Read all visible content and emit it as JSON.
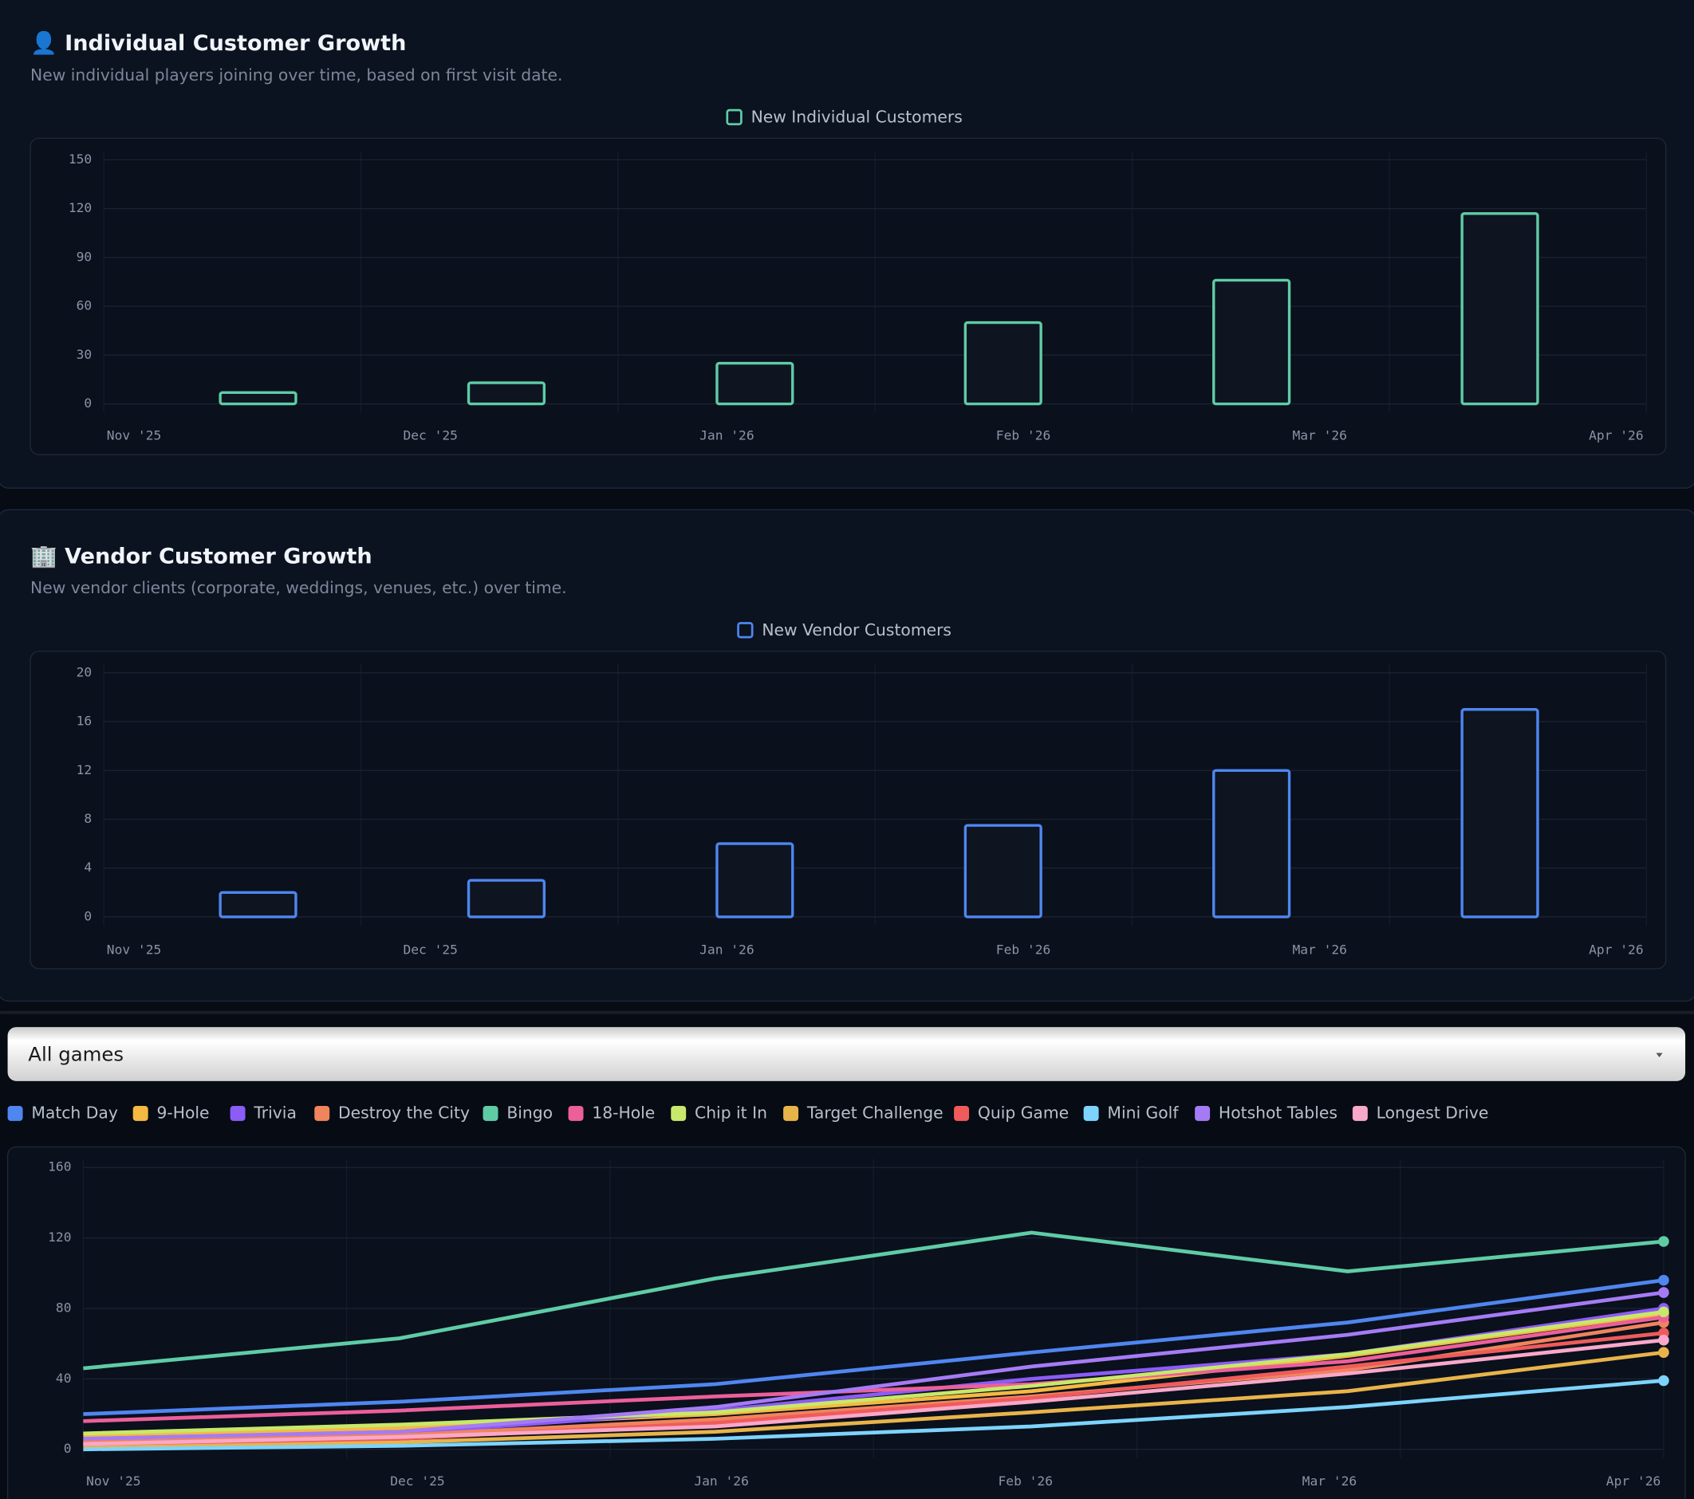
{
  "page": {
    "dropdown": "All games"
  },
  "chart_data": [
    {
      "type": "bar",
      "title": "👤 Individual Customer Growth",
      "subtitle": "New individual players joining over time, based on first visit date.",
      "legend": "New Individual Customers",
      "color": "#5fcca6",
      "categories": [
        "Nov '25",
        "Dec '25",
        "Jan '26",
        "Feb '26",
        "Mar '26",
        "Apr '26"
      ],
      "values": [
        7,
        13,
        25,
        50,
        76,
        117
      ],
      "ylim": [
        0,
        150
      ],
      "yticks": [
        0,
        30,
        60,
        90,
        120,
        150
      ],
      "grid": true
    },
    {
      "type": "bar",
      "title": "🏢 Vendor Customer Growth",
      "subtitle": "New vendor clients (corporate, weddings, venues, etc.) over time.",
      "legend": "New Vendor Customers",
      "color": "#4f86f0",
      "categories": [
        "Nov '25",
        "Dec '25",
        "Jan '26",
        "Feb '26",
        "Mar '26",
        "Apr '26"
      ],
      "values": [
        2,
        3,
        6,
        7.5,
        12,
        17
      ],
      "ylim": [
        0,
        20
      ],
      "yticks": [
        0,
        4,
        8,
        12,
        16,
        20
      ],
      "grid": true
    },
    {
      "type": "line",
      "categories": [
        "Nov '25",
        "Dec '25",
        "Jan '26",
        "Feb '26",
        "Mar '26",
        "Apr '26"
      ],
      "series": [
        {
          "name": "Match Day",
          "color": "#4f86f0",
          "values": [
            20,
            27,
            37,
            55,
            72,
            96
          ]
        },
        {
          "name": "9-Hole",
          "color": "#f5b942",
          "values": [
            8,
            12,
            20,
            33,
            53,
            77
          ]
        },
        {
          "name": "Trivia",
          "color": "#8b5cf6",
          "values": [
            5,
            9,
            22,
            40,
            54,
            80
          ]
        },
        {
          "name": "Destroy the City",
          "color": "#f0845c",
          "values": [
            4,
            8,
            17,
            30,
            45,
            72
          ]
        },
        {
          "name": "Bingo",
          "color": "#5fcca6",
          "values": [
            46,
            63,
            97,
            123,
            101,
            118
          ]
        },
        {
          "name": "18-Hole",
          "color": "#ec5f9b",
          "values": [
            16,
            22,
            30,
            37,
            50,
            75
          ]
        },
        {
          "name": "Chip it In",
          "color": "#c8e86b",
          "values": [
            9,
            14,
            21,
            36,
            54,
            78
          ]
        },
        {
          "name": "Target Challenge",
          "color": "#e8b44a",
          "values": [
            2,
            4,
            10,
            21,
            33,
            55
          ]
        },
        {
          "name": "Quip Game",
          "color": "#ef5b5b",
          "values": [
            3,
            6,
            15,
            29,
            47,
            66
          ]
        },
        {
          "name": "Mini Golf",
          "color": "#7dd3fc",
          "values": [
            0,
            2,
            6,
            13,
            24,
            39
          ]
        },
        {
          "name": "Hotshot Tables",
          "color": "#a57bf5",
          "values": [
            6,
            10,
            24,
            47,
            65,
            89
          ]
        },
        {
          "name": "Longest Drive",
          "color": "#f9a8c9",
          "values": [
            3,
            7,
            13,
            27,
            43,
            62
          ]
        }
      ],
      "ylim": [
        0,
        160
      ],
      "yticks": [
        0,
        40,
        80,
        120,
        160
      ],
      "grid": true
    }
  ]
}
